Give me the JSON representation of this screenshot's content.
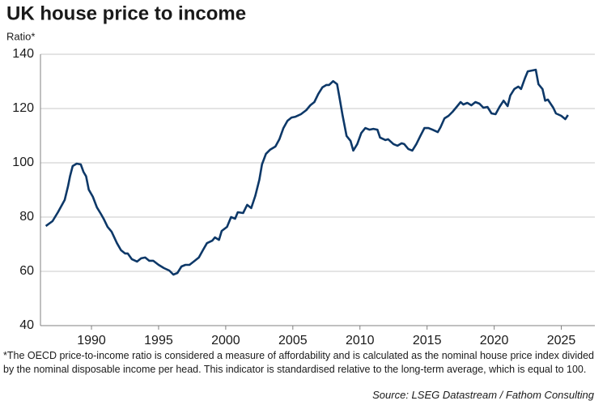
{
  "chart_data": {
    "type": "line",
    "title": "UK house price to income",
    "subtitle": "Ratio*",
    "footnote": "*The OECD price-to-income ratio is considered a measure of affordability and is calculated as the nominal house price index divided by the nominal disposable income per head. This indicator is standardised relative to the long-term average, which is equal to 100.",
    "source": "Source: LSEG Datastream / Fathom Consulting",
    "xlim": [
      1986.2,
      2027.5
    ],
    "xticks": [
      1990,
      1995,
      2000,
      2005,
      2010,
      2015,
      2020,
      2025
    ],
    "ylim": [
      40,
      140
    ],
    "yticks": [
      40,
      60,
      80,
      100,
      120,
      140
    ],
    "grid": true,
    "series": [
      {
        "color": "#0d3868",
        "x": [
          1986.6,
          1987.1,
          1987.5,
          1988.0,
          1988.25,
          1988.4,
          1988.6,
          1988.9,
          1989.2,
          1989.4,
          1989.6,
          1989.8,
          1990.1,
          1990.4,
          1990.7,
          1990.9,
          1991.2,
          1991.5,
          1991.9,
          1992.2,
          1992.5,
          1992.7,
          1993.0,
          1993.4,
          1993.7,
          1994.0,
          1994.3,
          1994.6,
          1995.0,
          1995.4,
          1995.8,
          1996.1,
          1996.4,
          1996.7,
          1997.0,
          1997.3,
          1997.7,
          1998.0,
          1998.3,
          1998.6,
          1999.0,
          1999.2,
          1999.5,
          1999.7,
          2000.1,
          2000.4,
          2000.7,
          2000.9,
          2001.3,
          2001.6,
          2001.9,
          2002.2,
          2002.5,
          2002.7,
          2003.0,
          2003.3,
          2003.7,
          2004.0,
          2004.3,
          2004.6,
          2004.9,
          2005.2,
          2005.6,
          2006.0,
          2006.3,
          2006.6,
          2006.9,
          2007.2,
          2007.5,
          2007.7,
          2008.0,
          2008.3,
          2008.5,
          2008.7,
          2009.0,
          2009.3,
          2009.5,
          2009.8,
          2010.1,
          2010.4,
          2010.7,
          2011.0,
          2011.3,
          2011.5,
          2011.9,
          2012.1,
          2012.5,
          2012.8,
          2013.1,
          2013.3,
          2013.6,
          2013.9,
          2014.2,
          2014.5,
          2014.8,
          2015.1,
          2015.4,
          2015.8,
          2016.0,
          2016.3,
          2016.6,
          2016.9,
          2017.2,
          2017.5,
          2017.7,
          2018.0,
          2018.3,
          2018.6,
          2018.9,
          2019.2,
          2019.5,
          2019.8,
          2020.1,
          2020.4,
          2020.7,
          2021.0,
          2021.2,
          2021.5,
          2021.8,
          2022.0,
          2022.3,
          2022.5,
          2022.8,
          2023.1,
          2023.3,
          2023.6,
          2023.8,
          2024.0,
          2024.4,
          2024.6,
          2025.0,
          2025.3,
          2025.5
        ],
        "values": [
          76.7,
          78.5,
          81.8,
          86.3,
          91.3,
          95,
          98.8,
          99.7,
          99.4,
          96.7,
          95,
          90.1,
          87.5,
          83.6,
          81.2,
          79.4,
          76.4,
          74.6,
          70.4,
          67.8,
          66.6,
          66.6,
          64.5,
          63.6,
          64.8,
          65.1,
          63.9,
          63.9,
          62.4,
          61.2,
          60.3,
          58.8,
          59.4,
          61.8,
          62.4,
          62.4,
          63.9,
          65.1,
          67.8,
          70.4,
          71.3,
          72.5,
          71.6,
          74.9,
          76.4,
          80,
          79.4,
          81.8,
          81.5,
          84.5,
          83.3,
          87.8,
          93.7,
          99.4,
          103.3,
          104.8,
          106,
          108.7,
          112.8,
          115.5,
          116.7,
          117,
          117.9,
          119.4,
          121.2,
          122.4,
          125.4,
          127.8,
          128.7,
          128.7,
          130.1,
          129,
          123.3,
          117.6,
          109.9,
          108.1,
          104.5,
          106.9,
          111,
          112.8,
          112.2,
          112.5,
          112.2,
          109.3,
          108.4,
          108.7,
          106.9,
          106.3,
          107.2,
          106.9,
          105.1,
          104.5,
          106.9,
          109.9,
          112.8,
          112.8,
          112.2,
          111.3,
          113.1,
          116.4,
          117.3,
          118.8,
          120.6,
          122.4,
          121.5,
          122.1,
          121.2,
          122.4,
          121.8,
          120.3,
          120.6,
          118.2,
          117.9,
          120.6,
          122.9,
          120.9,
          124.8,
          127.2,
          128.1,
          127.2,
          131.3,
          133.7,
          134,
          134.3,
          129,
          127.2,
          122.9,
          123.3,
          120.3,
          118.2,
          117.3,
          116.1,
          117.6
        ]
      }
    ]
  }
}
